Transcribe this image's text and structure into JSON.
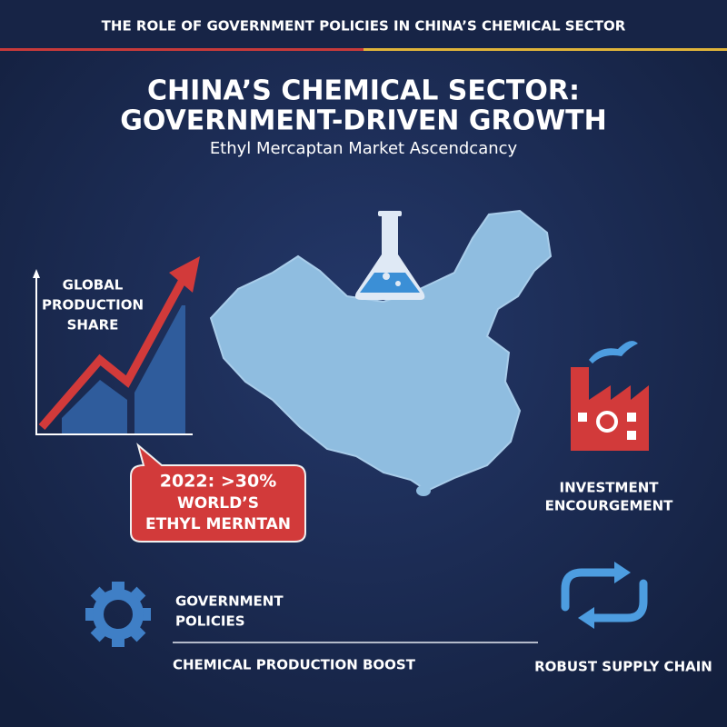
{
  "header": {
    "title": "THE ROLE OF GOVERNMENT POLICIES IN CHINA’S CHEMICAL SECTOR"
  },
  "main": {
    "title_lines": [
      "CHINA’S CHEMICAL SECTOR:",
      "GOVERNMENT-DRIVEN GROWTH"
    ],
    "subtitle": "Ethyl Mercaptan Market Ascendcancy"
  },
  "chart_panel": {
    "label_lines": [
      "GLOBAL",
      "PRODUCTION",
      "SHARE"
    ]
  },
  "callout": {
    "lines": [
      "2022: >30%",
      "WORLD’S",
      "ETHYL MERNTAN"
    ]
  },
  "investment": {
    "lines": [
      "INVESTMENT",
      "ENCOURGEMENT"
    ]
  },
  "policies": {
    "lines": [
      "GOVERNMENT",
      "POLICIES"
    ]
  },
  "boost": {
    "label": "CHEMICAL PRODUCTION BOOST"
  },
  "supply": {
    "label": "ROBUST SUPPLY CHAIN"
  }
}
